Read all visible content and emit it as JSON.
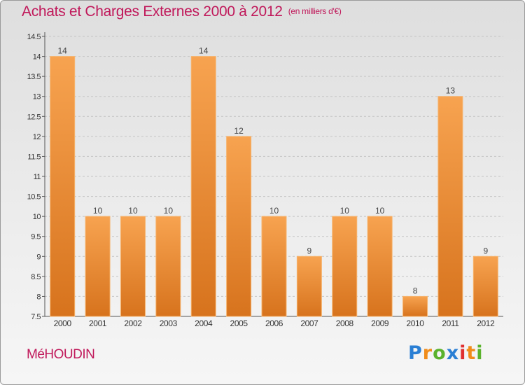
{
  "chart_data": {
    "type": "bar",
    "title": "Achats et Charges Externes 2000 à 2012",
    "subtitle": "(en milliers d'€)",
    "categories": [
      "2000",
      "2001",
      "2002",
      "2003",
      "2004",
      "2005",
      "2006",
      "2007",
      "2008",
      "2009",
      "2010",
      "2011",
      "2012"
    ],
    "values": [
      14,
      10,
      10,
      10,
      14,
      12,
      10,
      9,
      10,
      10,
      8,
      13,
      9
    ],
    "ylim": [
      7.5,
      14.5
    ],
    "yticks": [
      7.5,
      8,
      8.5,
      9,
      9.5,
      10,
      10.5,
      11,
      11.5,
      12,
      12.5,
      13,
      13.5,
      14,
      14.5
    ],
    "ytick_labels": [
      "7.5",
      "8",
      "8.5",
      "9",
      "9.5",
      "10",
      "10.5",
      "11",
      "11.5",
      "12",
      "12.5",
      "13",
      "13.5",
      "14",
      "14.5"
    ],
    "grid": "horizontal dashed",
    "xlabel": "",
    "ylabel": "",
    "bar_color": "#f0912e",
    "title_color": "#c0185a"
  },
  "commune": "MéHOUDIN",
  "logo": {
    "letters": [
      "P",
      "r",
      "o",
      "x",
      "i",
      "t",
      "i"
    ],
    "colors": [
      "#2a7fd4",
      "#f08c1a",
      "#5ab22c",
      "#2a7fd4",
      "#e03030",
      "#f08c1a",
      "#5ab22c"
    ]
  }
}
